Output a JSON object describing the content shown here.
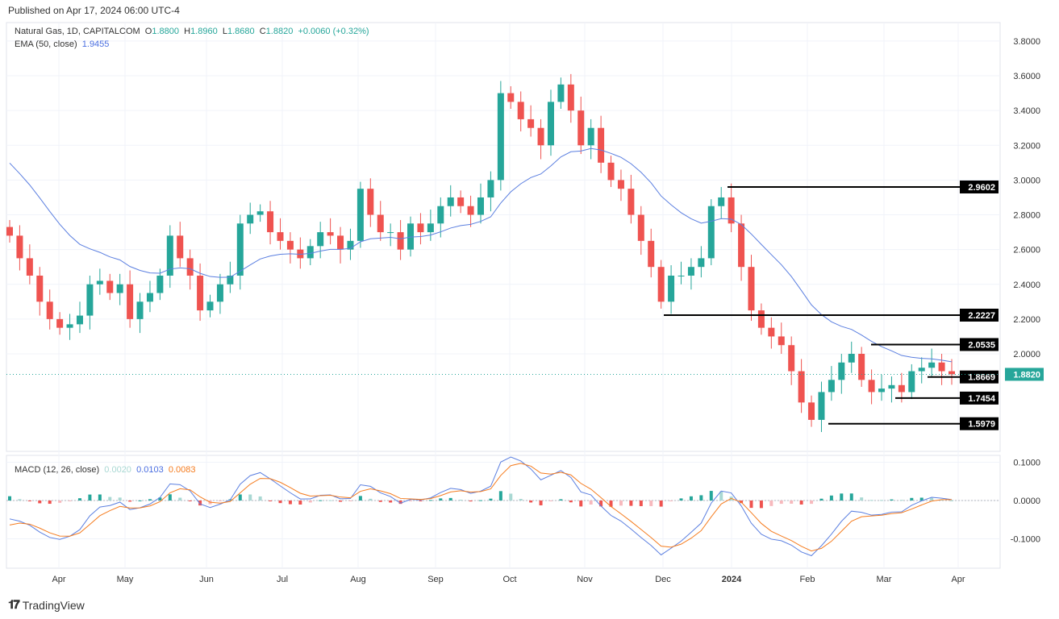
{
  "published": "Published on Apr 17, 2024 06:00 UTC-4",
  "legend": {
    "symbol": "Natural Gas, 1D, CAPITALCOM",
    "open": "1.8800",
    "high": "1.8960",
    "low": "1.8680",
    "close": "1.8820",
    "change": "+0.0060 (+0.32%)",
    "ema_label": "EMA (50, close)",
    "ema_value": "1.9455",
    "macd_label": "MACD (12, 26, close)",
    "macd_hist": "0.0020",
    "macd_line": "0.0103",
    "macd_signal": "0.0083"
  },
  "brand": "TradingView",
  "colors": {
    "up": "#26a69a",
    "down": "#ef5350",
    "ema": "#5b7fe0",
    "signal": "#f57c1f",
    "last": "#26a69a"
  },
  "chart_data": {
    "type": "candlestick",
    "title": "Natural Gas, 1D, CAPITALCOM",
    "ylim": [
      1.5,
      3.85
    ],
    "y_ticks": [
      "3.8000",
      "3.6000",
      "3.4000",
      "3.2000",
      "3.0000",
      "2.8000",
      "2.6000",
      "2.4000",
      "2.2000",
      "2.0000"
    ],
    "x_ticks": [
      "Apr",
      "May",
      "Jun",
      "Jul",
      "Aug",
      "Sep",
      "Oct",
      "Nov",
      "Dec",
      "2024",
      "Feb",
      "Mar",
      "Apr"
    ],
    "closes": [
      2.68,
      2.55,
      2.45,
      2.3,
      2.2,
      2.15,
      2.17,
      2.22,
      2.4,
      2.42,
      2.35,
      2.4,
      2.2,
      2.3,
      2.35,
      2.45,
      2.68,
      2.55,
      2.45,
      2.25,
      2.3,
      2.4,
      2.45,
      2.75,
      2.8,
      2.82,
      2.7,
      2.65,
      2.6,
      2.55,
      2.62,
      2.7,
      2.68,
      2.6,
      2.65,
      2.95,
      2.8,
      2.7,
      2.7,
      2.6,
      2.75,
      2.7,
      2.75,
      2.85,
      2.9,
      2.85,
      2.8,
      2.9,
      3.0,
      3.5,
      3.45,
      3.35,
      3.3,
      3.2,
      3.45,
      3.55,
      3.4,
      3.2,
      3.3,
      3.1,
      3.0,
      2.95,
      2.8,
      2.65,
      2.5,
      2.3,
      2.45,
      2.45,
      2.5,
      2.55,
      2.85,
      2.9,
      2.75,
      2.5,
      2.25,
      2.15,
      2.1,
      2.05,
      1.9,
      1.72,
      1.62,
      1.78,
      1.85,
      1.95,
      2.0,
      1.85,
      1.78,
      1.8,
      1.82,
      1.78,
      1.9,
      1.92,
      1.95,
      1.9,
      1.882
    ],
    "levels": [
      {
        "value": "2.9602",
        "price": 2.9602
      },
      {
        "value": "2.2227",
        "price": 2.2227
      },
      {
        "value": "2.0535",
        "price": 2.0535
      },
      {
        "value": "1.8669",
        "price": 1.8669
      },
      {
        "value": "1.7454",
        "price": 1.7454
      },
      {
        "value": "1.5979",
        "price": 1.5979
      }
    ],
    "last_price": {
      "value": "1.8820",
      "price": 1.882
    },
    "macd": {
      "ylim": [
        -0.15,
        0.11
      ],
      "y_ticks": [
        "0.1000",
        "0.0000",
        "-0.1000"
      ]
    }
  }
}
